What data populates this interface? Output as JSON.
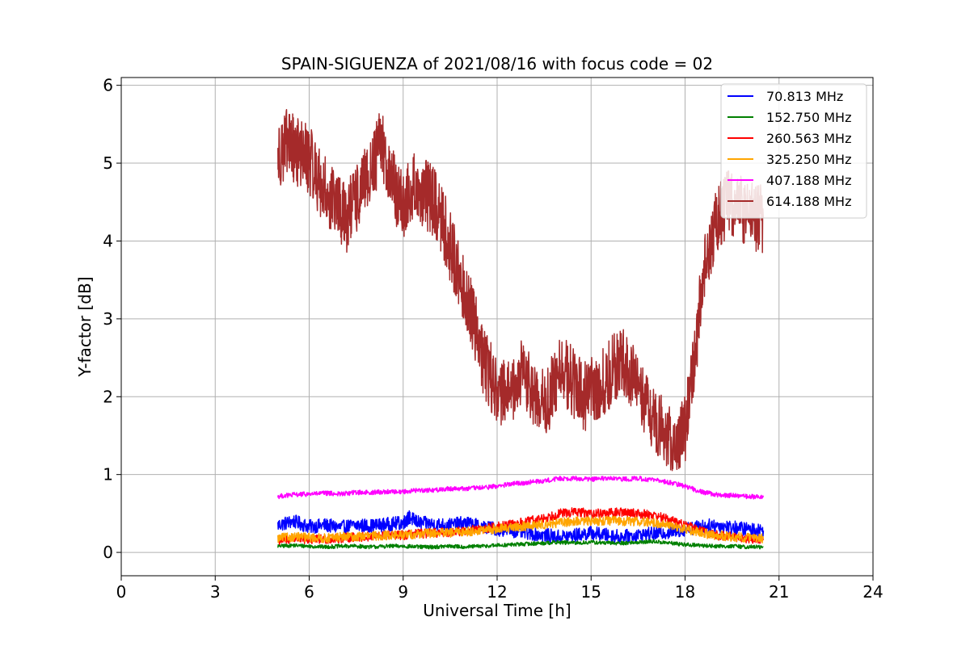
{
  "chart_data": {
    "type": "line",
    "title": "SPAIN-SIGUENZA of 2021/08/16 with focus code = 02",
    "xlabel": "Universal Time [h]",
    "ylabel": "Y-factor [dB]",
    "xlim": [
      0,
      24
    ],
    "ylim": [
      -0.3,
      6.1
    ],
    "xticks": [
      0,
      3,
      6,
      9,
      12,
      15,
      18,
      21,
      24
    ],
    "yticks": [
      0,
      1,
      2,
      3,
      4,
      5,
      6
    ],
    "grid": true,
    "legend_position": "top-right",
    "series": [
      {
        "name": " 70.813 MHz",
        "color": "#0000ff",
        "x": [
          5.0,
          5.5,
          6.0,
          6.5,
          7.0,
          7.5,
          8.0,
          8.5,
          9.0,
          9.2,
          9.5,
          10.0,
          10.5,
          11.0,
          11.5,
          12.0,
          12.5,
          13.0,
          13.5,
          14.0,
          14.5,
          15.0,
          15.5,
          16.0,
          16.5,
          17.0,
          17.5,
          18.0,
          18.5,
          19.0,
          19.5,
          20.0,
          20.5
        ],
        "y": [
          0.35,
          0.4,
          0.33,
          0.35,
          0.32,
          0.35,
          0.34,
          0.36,
          0.38,
          0.45,
          0.38,
          0.36,
          0.35,
          0.38,
          0.33,
          0.3,
          0.28,
          0.25,
          0.22,
          0.2,
          0.22,
          0.25,
          0.22,
          0.2,
          0.22,
          0.24,
          0.26,
          0.3,
          0.33,
          0.35,
          0.32,
          0.3,
          0.28
        ]
      },
      {
        "name": "152.750 MHz",
        "color": "#008000",
        "x": [
          5.0,
          5.5,
          6.0,
          6.5,
          7.0,
          7.5,
          8.0,
          8.5,
          9.0,
          9.5,
          10.0,
          10.5,
          11.0,
          11.5,
          12.0,
          12.5,
          13.0,
          13.5,
          14.0,
          14.5,
          15.0,
          15.5,
          16.0,
          16.5,
          17.0,
          17.5,
          18.0,
          18.5,
          19.0,
          19.5,
          20.0,
          20.5
        ],
        "y": [
          0.08,
          0.09,
          0.08,
          0.07,
          0.08,
          0.08,
          0.07,
          0.08,
          0.08,
          0.07,
          0.07,
          0.08,
          0.07,
          0.08,
          0.09,
          0.1,
          0.11,
          0.12,
          0.13,
          0.12,
          0.13,
          0.12,
          0.12,
          0.13,
          0.14,
          0.12,
          0.1,
          0.09,
          0.08,
          0.08,
          0.07,
          0.07
        ]
      },
      {
        "name": "260.563 MHz",
        "color": "#ff0000",
        "x": [
          5.0,
          5.5,
          6.0,
          6.5,
          7.0,
          7.5,
          8.0,
          8.5,
          9.0,
          9.5,
          10.0,
          10.5,
          11.0,
          11.5,
          12.0,
          12.5,
          13.0,
          13.5,
          14.0,
          14.5,
          15.0,
          15.5,
          16.0,
          16.5,
          17.0,
          17.5,
          18.0,
          18.5,
          19.0,
          19.5,
          20.0,
          20.5
        ],
        "y": [
          0.15,
          0.18,
          0.16,
          0.17,
          0.18,
          0.2,
          0.2,
          0.22,
          0.22,
          0.24,
          0.25,
          0.26,
          0.28,
          0.3,
          0.33,
          0.36,
          0.4,
          0.44,
          0.5,
          0.52,
          0.5,
          0.5,
          0.52,
          0.5,
          0.48,
          0.42,
          0.35,
          0.28,
          0.22,
          0.2,
          0.18,
          0.16
        ]
      },
      {
        "name": "325.250 MHz",
        "color": "#ffa500",
        "x": [
          5.0,
          5.5,
          6.0,
          6.5,
          7.0,
          7.5,
          8.0,
          8.5,
          9.0,
          9.5,
          10.0,
          10.5,
          11.0,
          11.5,
          12.0,
          12.5,
          13.0,
          13.5,
          14.0,
          14.5,
          15.0,
          15.5,
          16.0,
          16.5,
          17.0,
          17.5,
          18.0,
          18.5,
          19.0,
          19.5,
          20.0,
          20.5
        ],
        "y": [
          0.18,
          0.2,
          0.19,
          0.18,
          0.2,
          0.2,
          0.21,
          0.22,
          0.22,
          0.24,
          0.25,
          0.25,
          0.27,
          0.28,
          0.3,
          0.32,
          0.34,
          0.36,
          0.38,
          0.4,
          0.4,
          0.41,
          0.4,
          0.4,
          0.38,
          0.35,
          0.3,
          0.25,
          0.22,
          0.2,
          0.19,
          0.18
        ]
      },
      {
        "name": "407.188 MHz",
        "color": "#ff00ff",
        "x": [
          5.0,
          5.5,
          6.0,
          6.5,
          7.0,
          7.5,
          8.0,
          8.5,
          9.0,
          9.5,
          10.0,
          10.5,
          11.0,
          11.5,
          12.0,
          12.5,
          13.0,
          13.5,
          14.0,
          14.5,
          15.0,
          15.5,
          16.0,
          16.5,
          17.0,
          17.5,
          18.0,
          18.5,
          19.0,
          19.5,
          20.0,
          20.5
        ],
        "y": [
          0.72,
          0.74,
          0.75,
          0.76,
          0.75,
          0.77,
          0.77,
          0.78,
          0.78,
          0.8,
          0.8,
          0.82,
          0.82,
          0.83,
          0.85,
          0.88,
          0.9,
          0.92,
          0.95,
          0.95,
          0.94,
          0.95,
          0.94,
          0.95,
          0.93,
          0.9,
          0.85,
          0.78,
          0.74,
          0.73,
          0.72,
          0.71
        ]
      },
      {
        "name": "614.188 MHz",
        "color": "#a52a2a",
        "x": [
          5.0,
          5.3,
          5.6,
          6.0,
          6.4,
          6.8,
          7.2,
          7.6,
          8.0,
          8.3,
          8.6,
          9.0,
          9.3,
          9.7,
          10.0,
          10.3,
          10.6,
          11.0,
          11.3,
          11.6,
          12.0,
          12.4,
          12.8,
          13.2,
          13.6,
          14.0,
          14.4,
          14.8,
          15.2,
          15.6,
          16.0,
          16.4,
          16.8,
          17.2,
          17.6,
          18.0,
          18.3,
          18.6,
          19.0,
          19.4,
          19.8,
          20.2,
          20.5
        ],
        "y": [
          5.1,
          5.25,
          5.15,
          5.05,
          4.7,
          4.5,
          4.3,
          4.6,
          4.9,
          5.3,
          4.8,
          4.4,
          4.7,
          4.6,
          4.5,
          4.2,
          3.8,
          3.3,
          2.9,
          2.4,
          2.1,
          2.0,
          2.3,
          2.0,
          1.9,
          2.4,
          2.2,
          2.0,
          2.1,
          2.3,
          2.5,
          2.2,
          1.8,
          1.6,
          1.4,
          1.6,
          2.5,
          3.6,
          4.3,
          4.5,
          4.4,
          4.3,
          4.3
        ]
      }
    ]
  }
}
